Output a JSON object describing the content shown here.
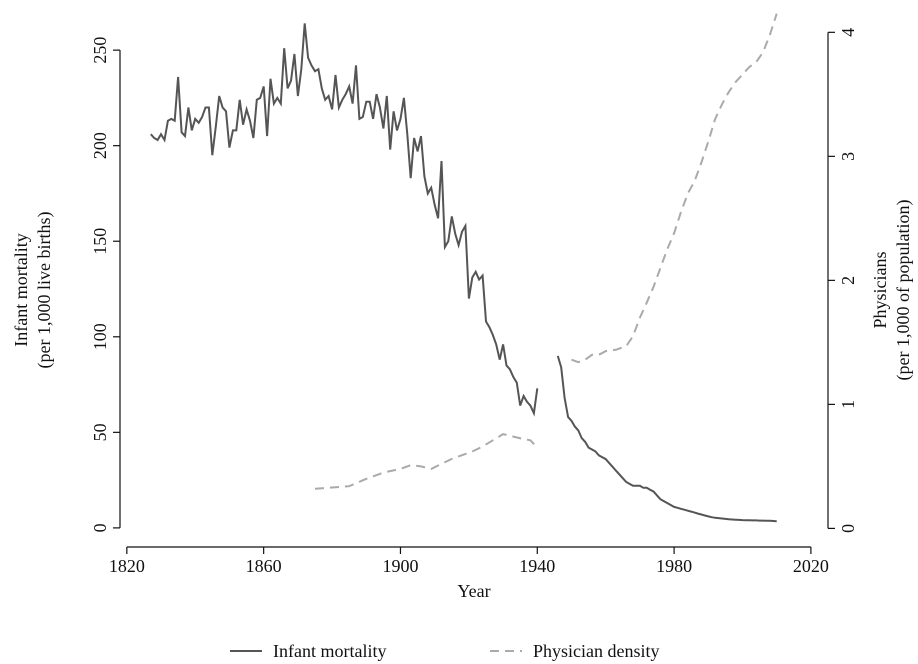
{
  "chart_data": {
    "type": "line",
    "x_label": "Year",
    "y_label": [
      "Infant mortality",
      "(per 1,000 live births)"
    ],
    "y2_label": [
      "Physicians",
      "(per 1,000 of population)"
    ],
    "xlim": [
      1818,
      2025
    ],
    "xticks": [
      1820,
      1860,
      1900,
      1940,
      1980,
      2020
    ],
    "ylim": [
      -10,
      271
    ],
    "yticks": [
      0,
      50,
      100,
      150,
      200,
      250
    ],
    "y2lim": [
      -0.15,
      4.18
    ],
    "y2ticks": [
      0,
      1,
      2,
      3,
      4
    ],
    "legend": "bottom",
    "series": [
      {
        "name": "Infant mortality",
        "color": "#555555",
        "dash": false,
        "x": [
          1827,
          1828,
          1829,
          1830,
          1831,
          1832,
          1833,
          1834,
          1835,
          1836,
          1837,
          1838,
          1839,
          1840,
          1841,
          1842,
          1843,
          1844,
          1845,
          1846,
          1847,
          1848,
          1849,
          1850,
          1851,
          1852,
          1853,
          1854,
          1855,
          1856,
          1857,
          1858,
          1859,
          1860,
          1861,
          1862,
          1863,
          1864,
          1865,
          1866,
          1867,
          1868,
          1869,
          1870,
          1871,
          1872,
          1873,
          1874,
          1875,
          1876,
          1877,
          1878,
          1879,
          1880,
          1881,
          1882,
          1883,
          1884,
          1885,
          1886,
          1887,
          1888,
          1889,
          1890,
          1891,
          1892,
          1893,
          1894,
          1895,
          1896,
          1897,
          1898,
          1899,
          1900,
          1901,
          1902,
          1903,
          1904,
          1905,
          1906,
          1907,
          1908,
          1909,
          1910,
          1911,
          1912,
          1913,
          1914,
          1915,
          1916,
          1917,
          1918,
          1919,
          1920,
          1921,
          1922,
          1923,
          1924,
          1925,
          1926,
          1927,
          1928,
          1929,
          1930,
          1931,
          1932,
          1933,
          1934,
          1935,
          1936,
          1937,
          1938,
          1939,
          1940,
          1941,
          1942,
          1943,
          1944,
          1945,
          1946,
          1947,
          1948,
          1949,
          1950,
          1951,
          1952,
          1953,
          1954,
          1955,
          1956,
          1957,
          1958,
          1959,
          1960,
          1961,
          1962,
          1963,
          1964,
          1965,
          1966,
          1967,
          1968,
          1969,
          1970,
          1971,
          1972,
          1973,
          1974,
          1975,
          1976,
          1977,
          1978,
          1979,
          1980,
          1981,
          1982,
          1983,
          1984,
          1985,
          1986,
          1987,
          1988,
          1989,
          1990,
          1991,
          1992,
          1993,
          1994,
          1995,
          1996,
          1997,
          1998,
          1999,
          2000,
          2001,
          2002,
          2003,
          2004,
          2005,
          2006,
          2007,
          2008,
          2009,
          2010
        ],
        "values": [
          206,
          204,
          203,
          206,
          203,
          213,
          214,
          213,
          236,
          207,
          205,
          220,
          208,
          214,
          212,
          215,
          220,
          220,
          195,
          210,
          226,
          220,
          218,
          199,
          208,
          208,
          224,
          211,
          219,
          213,
          204,
          224,
          225,
          231,
          205,
          235,
          222,
          225,
          222,
          251,
          230,
          234,
          248,
          226,
          240,
          264,
          246,
          242,
          239,
          240,
          230,
          224,
          226,
          219,
          237,
          220,
          224,
          227,
          231,
          222,
          242,
          214,
          215,
          223,
          223,
          214,
          227,
          220,
          209,
          226,
          198,
          218,
          208,
          214,
          225,
          206,
          183,
          204,
          197,
          205,
          184,
          175,
          178,
          169,
          162,
          192,
          147,
          150,
          163,
          154,
          148,
          155,
          158,
          120,
          131,
          134,
          130,
          132,
          108,
          105,
          101,
          96,
          88,
          96,
          85,
          83,
          79,
          76,
          64,
          69,
          66,
          64,
          60,
          73,
          null,
          null,
          null,
          null,
          null,
          90,
          84,
          68,
          58,
          56,
          53,
          51,
          47,
          45,
          42,
          41,
          40,
          38,
          37,
          36,
          34,
          32,
          30,
          28,
          26,
          24,
          23,
          22,
          22,
          22,
          21,
          21,
          20,
          19,
          17,
          15,
          14,
          13,
          12,
          11,
          10.5,
          10,
          9.5,
          9,
          8.5,
          8,
          7.5,
          7,
          6.5,
          6,
          5.6,
          5.3,
          5.1,
          4.9,
          4.7,
          4.5,
          4.4,
          4.3,
          4.2,
          4.1,
          4,
          4,
          3.9,
          3.9,
          3.8,
          3.8,
          3.7,
          3.7,
          3.6,
          3.5
        ]
      },
      {
        "name": "Physician density",
        "color": "#aaaaaa",
        "dash": true,
        "axis": "y2",
        "x": [
          1875,
          1880,
          1885,
          1890,
          1895,
          1900,
          1903,
          1906,
          1909,
          1912,
          1915,
          1918,
          1921,
          1924,
          1927,
          1930,
          1933,
          1936,
          1938,
          1940,
          1945,
          1950,
          1952,
          1954,
          1956,
          1958,
          1960,
          1963,
          1966,
          1968,
          1970,
          1972,
          1974,
          1976,
          1978,
          1980,
          1982,
          1984,
          1986,
          1988,
          1990,
          1992,
          1994,
          1996,
          1998,
          2000,
          2002,
          2004,
          2006,
          2008,
          2010
        ],
        "values": [
          0.32,
          0.33,
          0.34,
          0.4,
          0.45,
          0.48,
          0.51,
          0.5,
          0.48,
          0.52,
          0.56,
          0.59,
          0.62,
          0.66,
          0.71,
          0.76,
          0.74,
          0.72,
          0.71,
          0.65,
          null,
          1.36,
          1.34,
          1.36,
          1.4,
          1.4,
          1.43,
          1.44,
          1.47,
          1.55,
          1.7,
          1.82,
          1.95,
          2.1,
          2.25,
          2.38,
          2.55,
          2.7,
          2.8,
          2.95,
          3.12,
          3.3,
          3.42,
          3.52,
          3.6,
          3.66,
          3.72,
          3.76,
          3.84,
          3.98,
          4.15
        ]
      }
    ]
  }
}
